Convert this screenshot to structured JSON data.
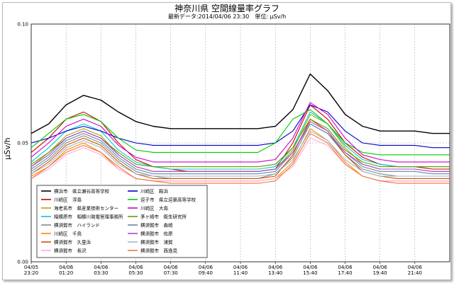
{
  "chart_data": {
    "type": "line",
    "title": "神奈川県 空間線量率グラフ",
    "subtitle": "最新データ:2014/04/06 23:30　単位: μSv/h",
    "ylabel": "μSv/h",
    "xlabel": "",
    "ylim": [
      0,
      0.1
    ],
    "yticks": [
      "0.00",
      "0.05",
      "0.10"
    ],
    "grid": true,
    "legend_position": "bottom-left",
    "x_ticks": [
      {
        "date": "04/05",
        "time": "23:20"
      },
      {
        "date": "04/06",
        "time": "01:20"
      },
      {
        "date": "04/06",
        "time": "03:30"
      },
      {
        "date": "04/06",
        "time": "05:30"
      },
      {
        "date": "04/06",
        "time": "07:30"
      },
      {
        "date": "04/06",
        "time": "09:40"
      },
      {
        "date": "04/06",
        "time": "11:40"
      },
      {
        "date": "04/06",
        "time": "13:40"
      },
      {
        "date": "04/06",
        "time": "15:40"
      },
      {
        "date": "04/06",
        "time": "17:40"
      },
      {
        "date": "04/06",
        "time": "19:40"
      },
      {
        "date": "04/06",
        "time": "21:40"
      }
    ],
    "x_hours": [
      0,
      1,
      2,
      3,
      4,
      5,
      6,
      7,
      8,
      9,
      10,
      11,
      12,
      13,
      14,
      15,
      16,
      17,
      18,
      19,
      20,
      21,
      22,
      23,
      24
    ],
    "series": [
      {
        "name": "横浜市　県立瀬谷高等学校",
        "color": "#000000",
        "values": [
          0.054,
          0.058,
          0.066,
          0.07,
          0.068,
          0.063,
          0.059,
          0.057,
          0.056,
          0.056,
          0.056,
          0.056,
          0.056,
          0.056,
          0.057,
          0.064,
          0.079,
          0.072,
          0.062,
          0.057,
          0.055,
          0.055,
          0.055,
          0.054,
          0.054
        ]
      },
      {
        "name": "川崎区　浮島",
        "color": "#cc0000",
        "values": [
          0.046,
          0.052,
          0.06,
          0.063,
          0.059,
          0.05,
          0.043,
          0.04,
          0.039,
          0.038,
          0.038,
          0.038,
          0.038,
          0.038,
          0.039,
          0.05,
          0.066,
          0.06,
          0.05,
          0.044,
          0.041,
          0.04,
          0.04,
          0.039,
          0.039
        ]
      },
      {
        "name": "海老名市　県産業技術センター",
        "color": "#aaaa00",
        "values": [
          0.04,
          0.046,
          0.053,
          0.056,
          0.053,
          0.045,
          0.04,
          0.038,
          0.038,
          0.038,
          0.038,
          0.038,
          0.038,
          0.038,
          0.039,
          0.047,
          0.062,
          0.058,
          0.048,
          0.041,
          0.039,
          0.039,
          0.039,
          0.038,
          0.038
        ]
      },
      {
        "name": "相模原市　相模川発電管理事務所",
        "color": "#00cccc",
        "values": [
          0.042,
          0.048,
          0.055,
          0.058,
          0.055,
          0.047,
          0.042,
          0.04,
          0.039,
          0.039,
          0.039,
          0.039,
          0.039,
          0.039,
          0.04,
          0.048,
          0.063,
          0.058,
          0.049,
          0.043,
          0.041,
          0.04,
          0.04,
          0.04,
          0.04
        ]
      },
      {
        "name": "横須賀市　ハイランド",
        "color": "#888888",
        "values": [
          0.038,
          0.043,
          0.05,
          0.053,
          0.05,
          0.043,
          0.038,
          0.036,
          0.035,
          0.035,
          0.035,
          0.035,
          0.035,
          0.035,
          0.037,
          0.044,
          0.058,
          0.054,
          0.045,
          0.039,
          0.037,
          0.036,
          0.036,
          0.036,
          0.036
        ]
      },
      {
        "name": "川崎区　千鳥",
        "color": "#ff8800",
        "values": [
          0.036,
          0.04,
          0.047,
          0.05,
          0.046,
          0.039,
          0.035,
          0.034,
          0.034,
          0.034,
          0.034,
          0.034,
          0.034,
          0.034,
          0.035,
          0.042,
          0.056,
          0.051,
          0.042,
          0.036,
          0.034,
          0.034,
          0.034,
          0.034,
          0.034
        ]
      },
      {
        "name": "横須賀市　久里浜",
        "color": "#cc5500",
        "values": [
          0.037,
          0.042,
          0.049,
          0.052,
          0.049,
          0.042,
          0.037,
          0.035,
          0.035,
          0.035,
          0.035,
          0.035,
          0.035,
          0.035,
          0.036,
          0.045,
          0.06,
          0.055,
          0.045,
          0.038,
          0.036,
          0.035,
          0.035,
          0.035,
          0.035
        ]
      },
      {
        "name": "横須賀市　長沢",
        "color": "#ffaadd",
        "values": [
          0.035,
          0.039,
          0.045,
          0.048,
          0.045,
          0.039,
          0.035,
          0.034,
          0.034,
          0.034,
          0.034,
          0.034,
          0.034,
          0.034,
          0.035,
          0.04,
          0.052,
          0.049,
          0.041,
          0.036,
          0.034,
          0.034,
          0.034,
          0.034,
          0.034
        ]
      },
      {
        "name": "川崎区　殿浜",
        "color": "#0000cc",
        "values": [
          0.05,
          0.052,
          0.055,
          0.057,
          0.055,
          0.052,
          0.05,
          0.049,
          0.049,
          0.049,
          0.049,
          0.049,
          0.049,
          0.049,
          0.05,
          0.055,
          0.066,
          0.063,
          0.055,
          0.05,
          0.049,
          0.049,
          0.049,
          0.048,
          0.048
        ]
      },
      {
        "name": "逗子市　県立逗葉高等学校",
        "color": "#00cc00",
        "values": [
          0.048,
          0.054,
          0.06,
          0.062,
          0.059,
          0.052,
          0.047,
          0.046,
          0.046,
          0.046,
          0.046,
          0.046,
          0.046,
          0.046,
          0.05,
          0.06,
          0.064,
          0.058,
          0.05,
          0.046,
          0.045,
          0.045,
          0.045,
          0.045,
          0.045
        ]
      },
      {
        "name": "川崎区　大島",
        "color": "#cc00cc",
        "values": [
          0.044,
          0.05,
          0.057,
          0.06,
          0.057,
          0.049,
          0.044,
          0.042,
          0.042,
          0.042,
          0.042,
          0.042,
          0.042,
          0.042,
          0.043,
          0.052,
          0.067,
          0.062,
          0.052,
          0.045,
          0.043,
          0.042,
          0.042,
          0.042,
          0.042
        ]
      },
      {
        "name": "茅ヶ崎市　衛生研究所",
        "color": "#669900",
        "values": [
          0.041,
          0.046,
          0.052,
          0.055,
          0.052,
          0.046,
          0.041,
          0.04,
          0.04,
          0.04,
          0.04,
          0.04,
          0.04,
          0.04,
          0.041,
          0.048,
          0.06,
          0.056,
          0.047,
          0.042,
          0.04,
          0.04,
          0.04,
          0.04,
          0.04
        ]
      },
      {
        "name": "横須賀市　森崎",
        "color": "#6688aa",
        "values": [
          0.039,
          0.044,
          0.051,
          0.054,
          0.051,
          0.044,
          0.039,
          0.037,
          0.037,
          0.037,
          0.037,
          0.037,
          0.037,
          0.037,
          0.038,
          0.046,
          0.058,
          0.054,
          0.046,
          0.04,
          0.038,
          0.038,
          0.038,
          0.037,
          0.037
        ]
      },
      {
        "name": "横須賀市　佐原",
        "color": "#aa44dd",
        "values": [
          0.04,
          0.045,
          0.052,
          0.055,
          0.052,
          0.045,
          0.04,
          0.038,
          0.038,
          0.038,
          0.038,
          0.038,
          0.038,
          0.038,
          0.039,
          0.046,
          0.059,
          0.055,
          0.046,
          0.041,
          0.039,
          0.039,
          0.039,
          0.038,
          0.038
        ]
      },
      {
        "name": "横須賀市　浦賀",
        "color": "#99bbcc",
        "values": [
          0.037,
          0.041,
          0.048,
          0.051,
          0.048,
          0.041,
          0.037,
          0.036,
          0.036,
          0.036,
          0.036,
          0.036,
          0.036,
          0.036,
          0.037,
          0.043,
          0.055,
          0.051,
          0.043,
          0.038,
          0.036,
          0.036,
          0.036,
          0.036,
          0.036
        ]
      },
      {
        "name": "横須賀市　西逸見",
        "color": "#ee7744",
        "values": [
          0.035,
          0.04,
          0.046,
          0.049,
          0.046,
          0.04,
          0.035,
          0.034,
          0.033,
          0.033,
          0.033,
          0.033,
          0.033,
          0.033,
          0.034,
          0.041,
          0.054,
          0.05,
          0.041,
          0.036,
          0.034,
          0.033,
          0.033,
          0.033,
          0.033
        ]
      }
    ]
  }
}
